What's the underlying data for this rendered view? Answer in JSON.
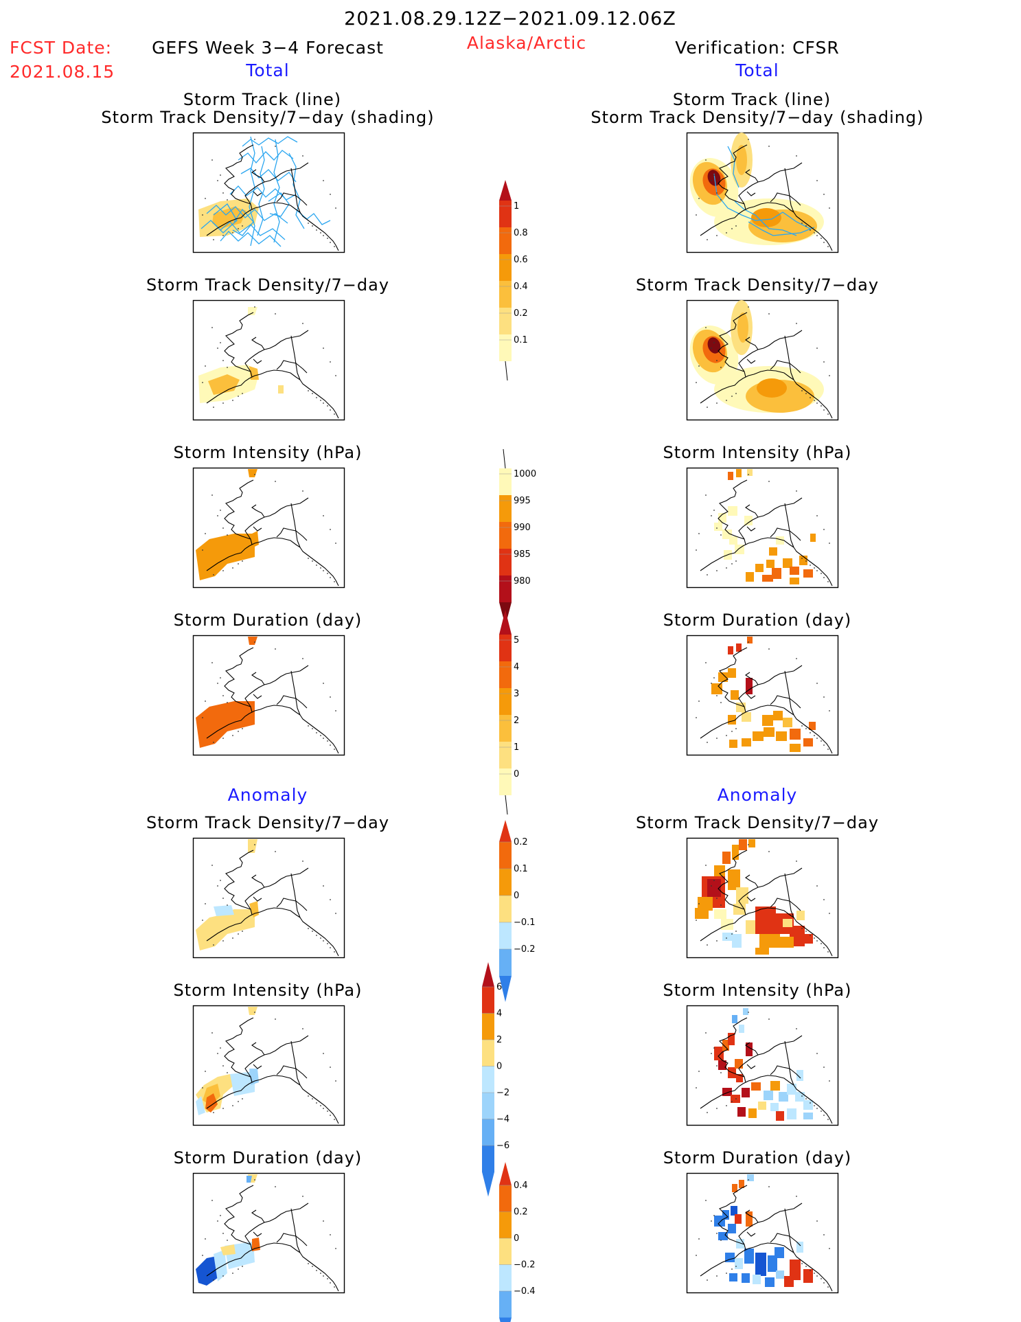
{
  "header": {
    "period": "2021.08.29.12Z−2021.09.12.06Z",
    "fcst_label": "FCST Date:",
    "fcst_date": "2021.08.15",
    "left_title": "GEFS Week 3−4 Forecast",
    "region": "Alaska/Arctic",
    "right_title": "Verification: CFSR",
    "total_left": "Total",
    "total_right": "Total",
    "anomaly_left": "Anomaly",
    "anomaly_right": "Anomaly"
  },
  "panels": {
    "track_title_1": "Storm Track (line)",
    "track_title_2": "Storm Track Density/7−day (shading)",
    "density": "Storm Track Density/7−day",
    "intensity": "Storm Intensity (hPa)",
    "duration": "Storm Duration (day)"
  },
  "colors": {
    "c1": "#fff9b8",
    "c2": "#fde080",
    "c3": "#fbbf3c",
    "c4": "#f59a0a",
    "c5": "#f26a0d",
    "c6": "#e03314",
    "c7": "#b3101a",
    "c8": "#7c0a10",
    "b1": "#bde7ff",
    "b2": "#9dd4fb",
    "b3": "#66b0f5",
    "b4": "#2f7fe8",
    "b5": "#1555d2",
    "track": "#2aa6f0"
  },
  "chart_data": [
    {
      "type": "heatmap",
      "name": "density_total",
      "colorbar": {
        "labels": [
          "1",
          "0.8",
          "0.6",
          "0.4",
          "0.2",
          "0.1"
        ]
      }
    },
    {
      "type": "heatmap",
      "name": "intensity_total",
      "colorbar": {
        "labels": [
          "1000",
          "995",
          "990",
          "985",
          "980"
        ]
      }
    },
    {
      "type": "heatmap",
      "name": "duration_total",
      "colorbar": {
        "labels": [
          "5",
          "4",
          "3",
          "2",
          "1",
          "0"
        ]
      }
    },
    {
      "type": "heatmap",
      "name": "density_anomaly",
      "colorbar": {
        "labels": [
          "0.2",
          "0.1",
          "0",
          "−0.1",
          "−0.2"
        ]
      }
    },
    {
      "type": "heatmap",
      "name": "intensity_anomaly",
      "colorbar": {
        "labels": [
          "6",
          "4",
          "2",
          "0",
          "−2",
          "−4",
          "−6"
        ]
      }
    },
    {
      "type": "heatmap",
      "name": "duration_anomaly",
      "colorbar": {
        "labels": [
          "0.4",
          "0.2",
          "0",
          "−0.2",
          "−0.4"
        ]
      }
    }
  ]
}
